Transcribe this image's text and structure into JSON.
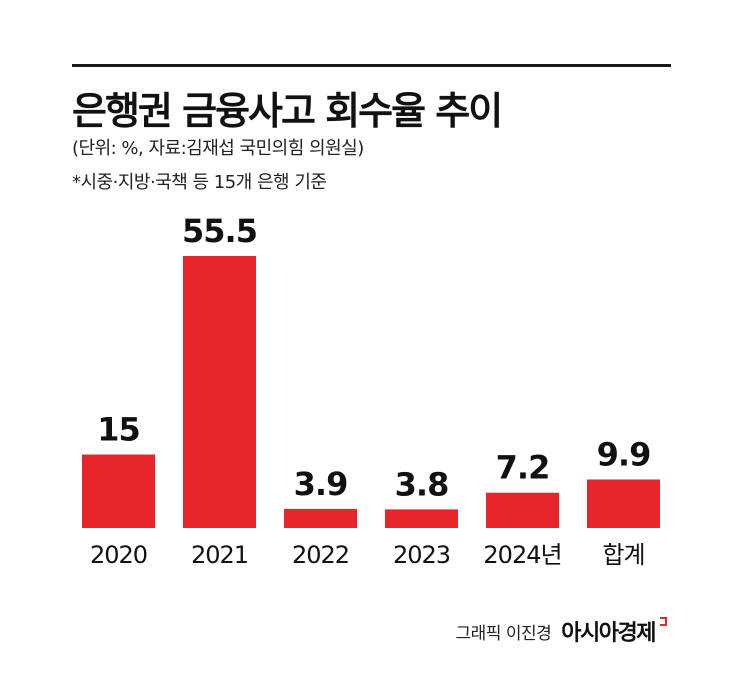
{
  "title": "은행권 금융사고 회수율 추이",
  "subtitle": "(단위: %, 자료:김재섭 국민의힘 의원실)",
  "note": "*시중·지방·국책 등 15개 은행 기준",
  "credit": {
    "graphic": "그래픽 이진경",
    "logo": "아시아경제"
  },
  "colors": {
    "bar": "#e8252a",
    "text": "#111111",
    "rule": "#1a1a1a"
  },
  "chart_data": {
    "type": "bar",
    "categories": [
      "2020",
      "2021",
      "2022",
      "2023",
      "2024년",
      "합계"
    ],
    "values": [
      15,
      55.5,
      3.9,
      3.8,
      7.2,
      9.9
    ],
    "labels": [
      "15",
      "55.5",
      "3.9",
      "3.8",
      "7.2",
      "9.9"
    ],
    "title": "은행권 금융사고 회수율 추이",
    "xlabel": "",
    "ylabel": "",
    "ylim": [
      0,
      55.5
    ],
    "grid": false,
    "legend": "none"
  }
}
